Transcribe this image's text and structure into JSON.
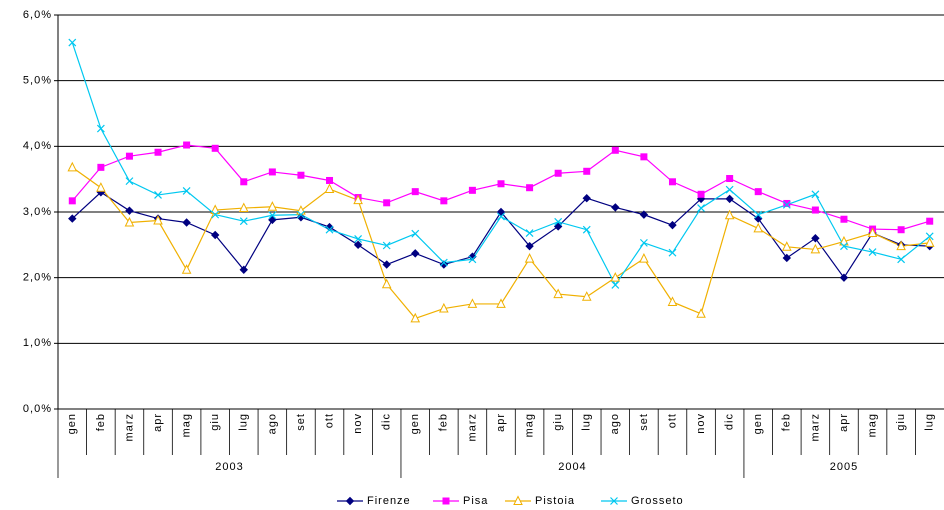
{
  "chart_data": {
    "type": "line",
    "groups": [
      {
        "label": "2003",
        "categories": [
          "gen",
          "feb",
          "marz",
          "apr",
          "mag",
          "giu",
          "lug",
          "ago",
          "set",
          "ott",
          "nov",
          "dic"
        ]
      },
      {
        "label": "2004",
        "categories": [
          "gen",
          "feb",
          "marz",
          "apr",
          "mag",
          "giu",
          "lug",
          "ago",
          "set",
          "ott",
          "nov",
          "dic"
        ]
      },
      {
        "label": "2005",
        "categories": [
          "gen",
          "feb",
          "marz",
          "apr",
          "mag",
          "giu",
          "lug"
        ]
      }
    ],
    "series": [
      {
        "name": "Firenze",
        "color": "#000080",
        "marker": "diamond",
        "values": [
          2.9,
          3.3,
          3.02,
          2.9,
          2.84,
          2.65,
          2.12,
          2.88,
          2.92,
          2.77,
          2.5,
          2.2,
          2.37,
          2.2,
          2.32,
          3.0,
          2.48,
          2.78,
          3.21,
          3.07,
          2.96,
          2.8,
          3.2,
          3.2,
          2.9,
          2.3,
          2.6,
          2.0,
          2.68,
          2.5,
          2.48
        ]
      },
      {
        "name": "Pisa",
        "color": "#ff00ff",
        "marker": "square",
        "values": [
          3.17,
          3.68,
          3.85,
          3.91,
          4.02,
          3.97,
          3.46,
          3.61,
          3.56,
          3.48,
          3.22,
          3.14,
          3.31,
          3.17,
          3.33,
          3.43,
          3.37,
          3.59,
          3.62,
          3.94,
          3.84,
          3.46,
          3.27,
          3.51,
          3.31,
          3.13,
          3.03,
          2.89,
          2.74,
          2.73,
          2.86
        ]
      },
      {
        "name": "Pistoia",
        "color": "#f0b000",
        "marker": "triangle",
        "values": [
          3.68,
          3.37,
          2.84,
          2.87,
          2.12,
          3.03,
          3.06,
          3.08,
          3.02,
          3.35,
          3.18,
          1.9,
          1.38,
          1.53,
          1.6,
          1.6,
          2.29,
          1.75,
          1.71,
          2.0,
          2.29,
          1.63,
          1.45,
          2.95,
          2.75,
          2.47,
          2.43,
          2.55,
          2.68,
          2.48,
          2.53
        ]
      },
      {
        "name": "Grosseto",
        "color": "#00c8f0",
        "marker": "x",
        "values": [
          5.58,
          4.27,
          3.47,
          3.26,
          3.32,
          2.96,
          2.86,
          2.95,
          2.96,
          2.73,
          2.59,
          2.49,
          2.67,
          2.23,
          2.28,
          2.93,
          2.68,
          2.85,
          2.73,
          1.89,
          2.53,
          2.38,
          3.06,
          3.34,
          2.96,
          3.11,
          3.27,
          2.48,
          2.39,
          2.28,
          2.63
        ]
      }
    ],
    "ylim": [
      0,
      6
    ],
    "yticks": [
      {
        "value": 0,
        "label": "0,0%"
      },
      {
        "value": 1,
        "label": "1,0%"
      },
      {
        "value": 2,
        "label": "2,0%"
      },
      {
        "value": 3,
        "label": "3,0%"
      },
      {
        "value": 4,
        "label": "4,0%"
      },
      {
        "value": 5,
        "label": "5,0%"
      },
      {
        "value": 6,
        "label": "6,0%"
      }
    ],
    "grid": true,
    "legend": "bottom"
  }
}
